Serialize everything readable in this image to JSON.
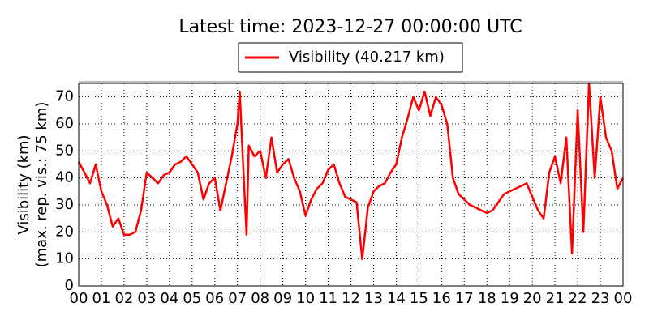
{
  "chart_data": {
    "type": "line",
    "title": "Latest time: 2023-12-27 00:00:00 UTC",
    "ylabel": [
      "Visibility (km)",
      "(max. rep. vis.: 75 km)"
    ],
    "x": [
      0,
      0.25,
      0.5,
      0.75,
      1,
      1.25,
      1.5,
      1.75,
      2,
      2.25,
      2.5,
      2.75,
      3,
      3.25,
      3.5,
      3.75,
      4,
      4.25,
      4.5,
      4.75,
      5,
      5.25,
      5.5,
      5.75,
      6,
      6.25,
      6.5,
      6.75,
      7,
      7.1,
      7.25,
      7.4,
      7.5,
      7.75,
      8,
      8.25,
      8.5,
      8.75,
      9,
      9.25,
      9.5,
      9.75,
      10,
      10.25,
      10.5,
      10.75,
      11,
      11.25,
      11.5,
      11.75,
      12,
      12.25,
      12.5,
      12.75,
      13,
      13.25,
      13.5,
      13.75,
      14,
      14.25,
      14.5,
      14.75,
      15,
      15.25,
      15.5,
      15.75,
      16,
      16.25,
      16.5,
      16.75,
      17,
      17.25,
      17.5,
      17.75,
      18,
      18.25,
      18.5,
      18.75,
      19,
      19.25,
      19.5,
      19.75,
      20,
      20.25,
      20.5,
      20.75,
      21,
      21.25,
      21.5,
      21.75,
      22,
      22.25,
      22.5,
      22.75,
      23,
      23.25,
      23.5,
      23.75,
      24
    ],
    "series": [
      {
        "name": "Visibility (40.217 km)",
        "color": "#ff0000",
        "values": [
          46,
          42,
          38,
          45,
          35,
          30,
          22,
          25,
          19,
          19,
          20,
          28,
          42,
          40,
          38,
          41,
          42,
          45,
          46,
          48,
          45,
          42,
          32,
          38,
          40,
          28,
          38,
          48,
          60,
          72,
          45,
          19,
          52,
          48,
          50,
          40,
          55,
          42,
          45,
          47,
          40,
          35,
          26,
          32,
          36,
          38,
          43,
          45,
          38,
          33,
          32,
          31,
          10,
          29,
          35,
          37,
          38,
          42,
          45,
          55,
          62,
          70,
          65,
          72,
          63,
          70,
          67,
          60,
          40,
          34,
          32,
          30,
          29,
          28,
          27,
          28,
          31,
          34,
          35,
          36,
          37,
          38,
          33,
          28,
          25,
          42,
          48,
          38,
          55,
          12,
          65,
          20,
          75,
          40,
          70,
          55,
          50,
          36,
          40
        ]
      }
    ],
    "xlim": [
      0,
      24
    ],
    "ylim": [
      0,
      75
    ],
    "xticks": [
      {
        "value": 0,
        "label": "00"
      },
      {
        "value": 1,
        "label": "01"
      },
      {
        "value": 2,
        "label": "02"
      },
      {
        "value": 3,
        "label": "03"
      },
      {
        "value": 4,
        "label": "04"
      },
      {
        "value": 5,
        "label": "05"
      },
      {
        "value": 6,
        "label": "06"
      },
      {
        "value": 7,
        "label": "07"
      },
      {
        "value": 8,
        "label": "08"
      },
      {
        "value": 9,
        "label": "09"
      },
      {
        "value": 10,
        "label": "10"
      },
      {
        "value": 11,
        "label": "11"
      },
      {
        "value": 12,
        "label": "12"
      },
      {
        "value": 13,
        "label": "13"
      },
      {
        "value": 14,
        "label": "14"
      },
      {
        "value": 15,
        "label": "15"
      },
      {
        "value": 16,
        "label": "16"
      },
      {
        "value": 17,
        "label": "17"
      },
      {
        "value": 18,
        "label": "18"
      },
      {
        "value": 19,
        "label": "19"
      },
      {
        "value": 20,
        "label": "20"
      },
      {
        "value": 21,
        "label": "21"
      },
      {
        "value": 22,
        "label": "22"
      },
      {
        "value": 23,
        "label": "23"
      },
      {
        "value": 24,
        "label": "00"
      }
    ],
    "yticks": [
      0,
      10,
      20,
      30,
      40,
      50,
      60,
      70
    ],
    "grid": true,
    "legend": "top"
  }
}
